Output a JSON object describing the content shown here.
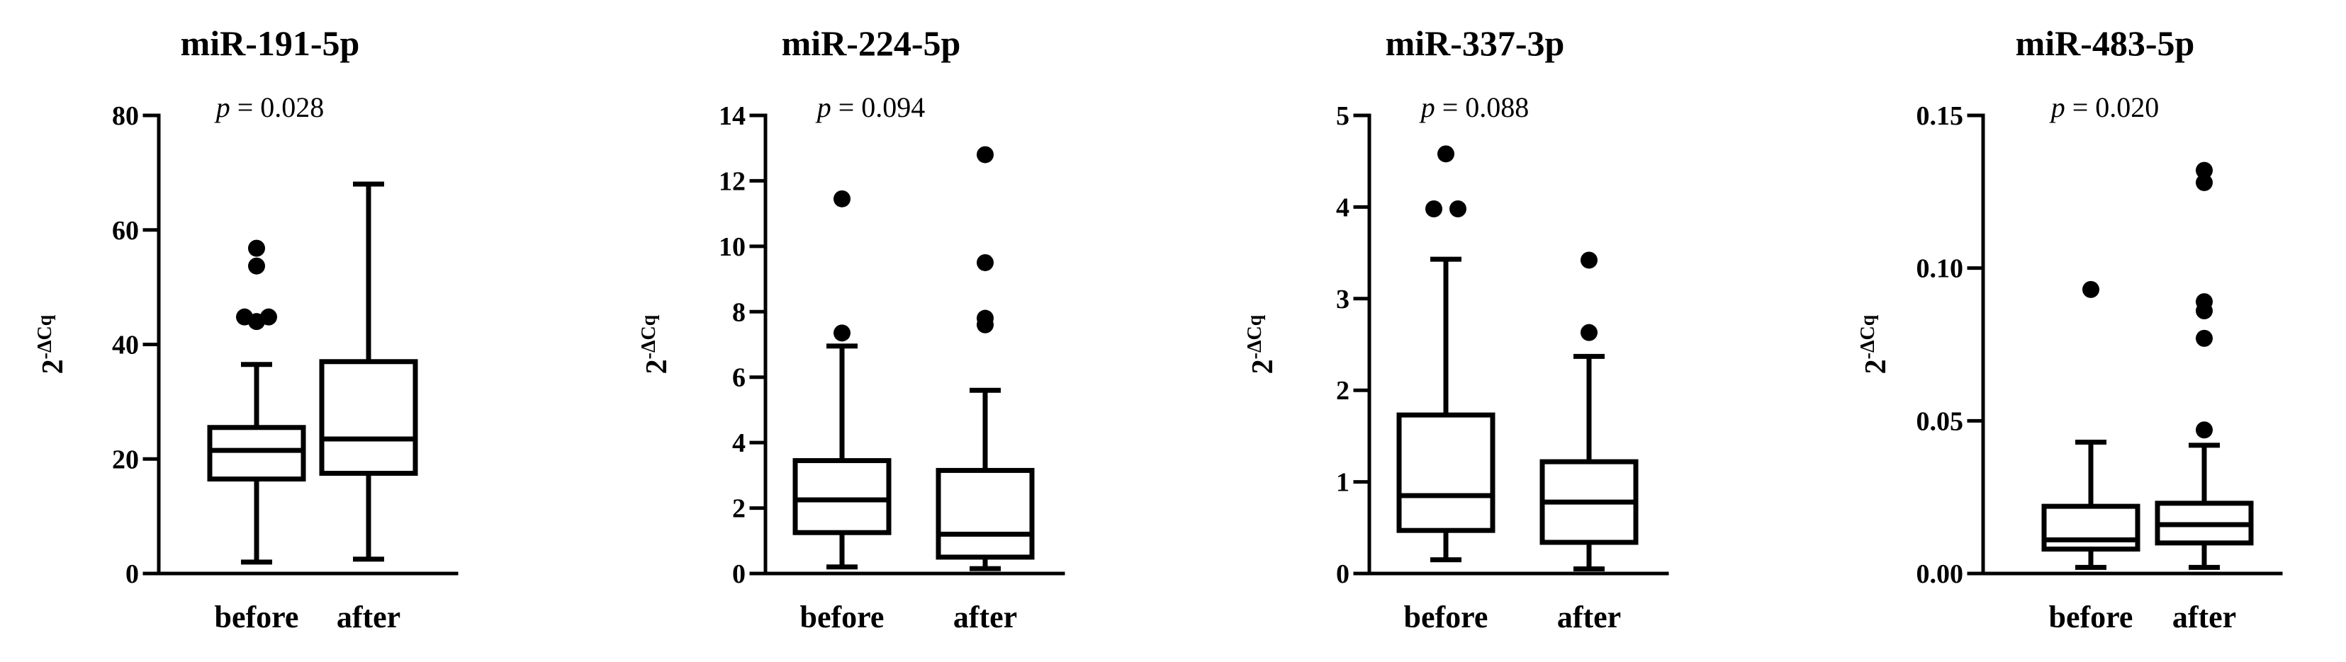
{
  "chart_data": [
    {
      "type": "box",
      "title": "miR-191-5p",
      "p_prefix": "p",
      "p_text": " = 0.028",
      "ylabel_base": "2",
      "ylabel_sup": "-ΔCq",
      "ylim": [
        0,
        80
      ],
      "yticks": [
        0,
        20,
        40,
        60,
        80
      ],
      "ytick_labels": [
        "0",
        "20",
        "40",
        "60",
        "80"
      ],
      "categories": [
        "before",
        "after"
      ],
      "boxes": [
        {
          "name": "before",
          "whisker_low": 2,
          "q1": 16.5,
          "median": 21.5,
          "q3": 25.5,
          "whisker_high": 36.5,
          "outliers": [
            44,
            44.8,
            44.8,
            53.7,
            56.8
          ]
        },
        {
          "name": "after",
          "whisker_low": 2.5,
          "q1": 17.5,
          "median": 23.5,
          "q3": 37.0,
          "whisker_high": 68.0,
          "outliers": []
        }
      ]
    },
    {
      "type": "box",
      "title": "miR-224-5p",
      "p_prefix": "p",
      "p_text": " = 0.094",
      "ylabel_base": "2",
      "ylabel_sup": "-ΔCq",
      "ylim": [
        0,
        14
      ],
      "yticks": [
        0,
        2,
        4,
        6,
        8,
        10,
        12,
        14
      ],
      "ytick_labels": [
        "0",
        "2",
        "4",
        "6",
        "8",
        "10",
        "12",
        "14"
      ],
      "categories": [
        "before",
        "after"
      ],
      "boxes": [
        {
          "name": "before",
          "whisker_low": 0.2,
          "q1": 1.25,
          "median": 2.25,
          "q3": 3.45,
          "whisker_high": 6.95,
          "outliers": [
            7.35,
            11.45
          ]
        },
        {
          "name": "after",
          "whisker_low": 0.15,
          "q1": 0.5,
          "median": 1.2,
          "q3": 3.15,
          "whisker_high": 5.6,
          "outliers": [
            7.6,
            7.8,
            9.5,
            12.8
          ]
        }
      ]
    },
    {
      "type": "box",
      "title": "miR-337-3p",
      "p_prefix": "p",
      "p_text": " = 0.088",
      "ylabel_base": "2",
      "ylabel_sup": "-ΔCq",
      "ylim": [
        0,
        5
      ],
      "yticks": [
        0,
        1,
        2,
        3,
        4,
        5
      ],
      "ytick_labels": [
        "0",
        "1",
        "2",
        "3",
        "4",
        "5"
      ],
      "categories": [
        "before",
        "after"
      ],
      "boxes": [
        {
          "name": "before",
          "whisker_low": 0.15,
          "q1": 0.47,
          "median": 0.85,
          "q3": 1.73,
          "whisker_high": 3.43,
          "outliers": [
            3.98,
            3.98,
            4.58
          ]
        },
        {
          "name": "after",
          "whisker_low": 0.05,
          "q1": 0.34,
          "median": 0.78,
          "q3": 1.22,
          "whisker_high": 2.37,
          "outliers": [
            2.63,
            3.42
          ]
        }
      ]
    },
    {
      "type": "box",
      "title": "miR-483-5p",
      "p_prefix": "p",
      "p_text": " = 0.020",
      "ylabel_base": "2",
      "ylabel_sup": "-ΔCq",
      "ylim": [
        0,
        0.15
      ],
      "yticks": [
        0,
        0.05,
        0.1,
        0.15
      ],
      "ytick_labels": [
        "0.00",
        "0.05",
        "0.10",
        "0.15"
      ],
      "categories": [
        "before",
        "after"
      ],
      "boxes": [
        {
          "name": "before",
          "whisker_low": 0.002,
          "q1": 0.008,
          "median": 0.011,
          "q3": 0.022,
          "whisker_high": 0.043,
          "outliers": [
            0.093
          ]
        },
        {
          "name": "after",
          "whisker_low": 0.002,
          "q1": 0.01,
          "median": 0.016,
          "q3": 0.023,
          "whisker_high": 0.042,
          "outliers": [
            0.047,
            0.077,
            0.086,
            0.089,
            0.128,
            0.132
          ]
        }
      ]
    }
  ]
}
